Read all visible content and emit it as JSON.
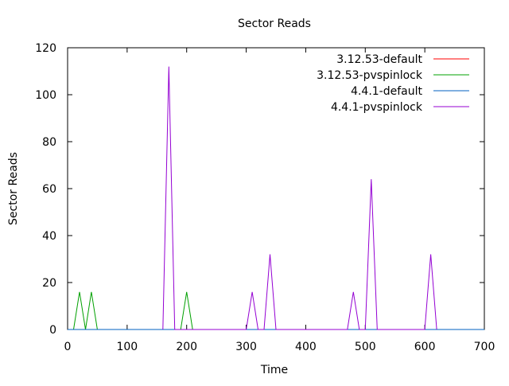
{
  "chart_data": {
    "type": "line",
    "title": "Sector Reads",
    "xlabel": "Time",
    "ylabel": "Sector Reads",
    "xlim": [
      0,
      700
    ],
    "ylim": [
      0,
      120
    ],
    "xticks": [
      0,
      100,
      200,
      300,
      400,
      500,
      600,
      700
    ],
    "yticks": [
      0,
      20,
      40,
      60,
      80,
      100,
      120
    ],
    "grid": false,
    "legend_position": "top-right",
    "series": [
      {
        "name": "3.12.53-default",
        "color": "#ff0000",
        "points": [
          [
            0,
            0
          ],
          [
            700,
            0
          ]
        ]
      },
      {
        "name": "3.12.53-pvspinlock",
        "color": "#00a000",
        "points": [
          [
            10,
            0
          ],
          [
            20,
            16
          ],
          [
            30,
            0
          ],
          [
            40,
            16
          ],
          [
            50,
            0
          ],
          [
            190,
            0
          ],
          [
            200,
            16
          ],
          [
            210,
            0
          ]
        ]
      },
      {
        "name": "4.4.1-default",
        "color": "#0060c0",
        "points": [
          [
            0,
            0
          ],
          [
            700,
            0
          ]
        ]
      },
      {
        "name": "4.4.1-pvspinlock",
        "color": "#9400d3",
        "points": [
          [
            160,
            0
          ],
          [
            170,
            112
          ],
          [
            180,
            0
          ],
          [
            300,
            0
          ],
          [
            310,
            16
          ],
          [
            320,
            0
          ],
          [
            330,
            0
          ],
          [
            340,
            32
          ],
          [
            350,
            0
          ],
          [
            470,
            0
          ],
          [
            480,
            16
          ],
          [
            490,
            0
          ],
          [
            500,
            0
          ],
          [
            510,
            64
          ],
          [
            520,
            0
          ],
          [
            600,
            0
          ],
          [
            610,
            32
          ],
          [
            620,
            0
          ]
        ]
      }
    ]
  }
}
